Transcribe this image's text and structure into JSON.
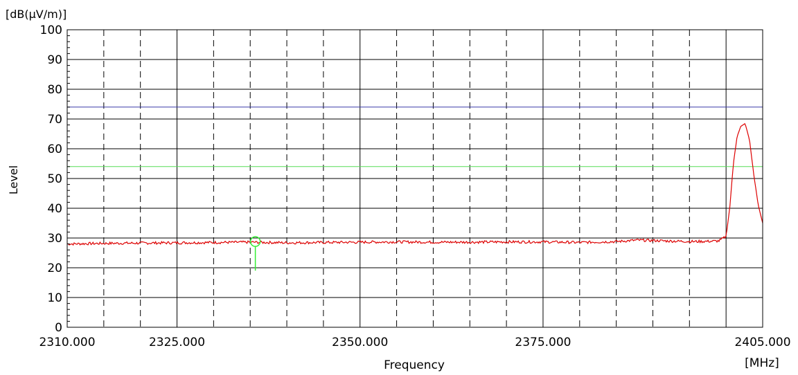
{
  "chart_data": {
    "type": "line",
    "xlabel": "Frequency",
    "ylabel": "Level",
    "xunit": "[MHz]",
    "yunit": "[dB(μV/m)]",
    "xlim": [
      2310.0,
      2405.0
    ],
    "ylim": [
      0,
      100
    ],
    "x_tick_labels": [
      {
        "value": 2310.0,
        "label": "2310.000"
      },
      {
        "value": 2325.0,
        "label": "2325.000"
      },
      {
        "value": 2350.0,
        "label": "2350.000"
      },
      {
        "value": 2375.0,
        "label": "2375.000"
      },
      {
        "value": 2405.0,
        "label": "2405.000"
      }
    ],
    "y_ticks": [
      0,
      10,
      20,
      30,
      40,
      50,
      60,
      70,
      80,
      90,
      100
    ],
    "x_gridlines_solid": [
      2325.0,
      2350.0,
      2375.0,
      2400.0
    ],
    "x_gridlines_dashed": [
      2315.0,
      2320.0,
      2330.0,
      2335.0,
      2340.0,
      2345.0,
      2355.0,
      2360.0,
      2365.0,
      2370.0,
      2380.0,
      2385.0,
      2390.0,
      2395.0
    ],
    "grid": true,
    "limit_lines": [
      {
        "value": 74,
        "color": "#3a3aa8"
      },
      {
        "value": 54,
        "color": "#55dd55"
      }
    ],
    "marker": {
      "x": 2335.7,
      "y": 28.8,
      "color": "#33ee33"
    },
    "series": [
      {
        "color": "#dd0000",
        "x": [
          2310,
          2315,
          2320,
          2325,
          2330,
          2335,
          2340,
          2345,
          2350,
          2355,
          2360,
          2365,
          2370,
          2375,
          2380,
          2385,
          2388,
          2392,
          2396,
          2399,
          2400,
          2400.5,
          2401,
          2401.5,
          2402,
          2402.6,
          2403.2,
          2403.8,
          2404.4,
          2405
        ],
        "y": [
          28.0,
          28.2,
          28.3,
          28.4,
          28.5,
          28.6,
          28.4,
          28.5,
          28.6,
          28.7,
          28.6,
          28.6,
          28.7,
          28.7,
          28.5,
          28.8,
          29.3,
          29.0,
          28.8,
          29.0,
          30.5,
          40.0,
          55.0,
          64.0,
          67.5,
          68.5,
          63.0,
          51.0,
          41.0,
          35.0
        ]
      }
    ]
  }
}
